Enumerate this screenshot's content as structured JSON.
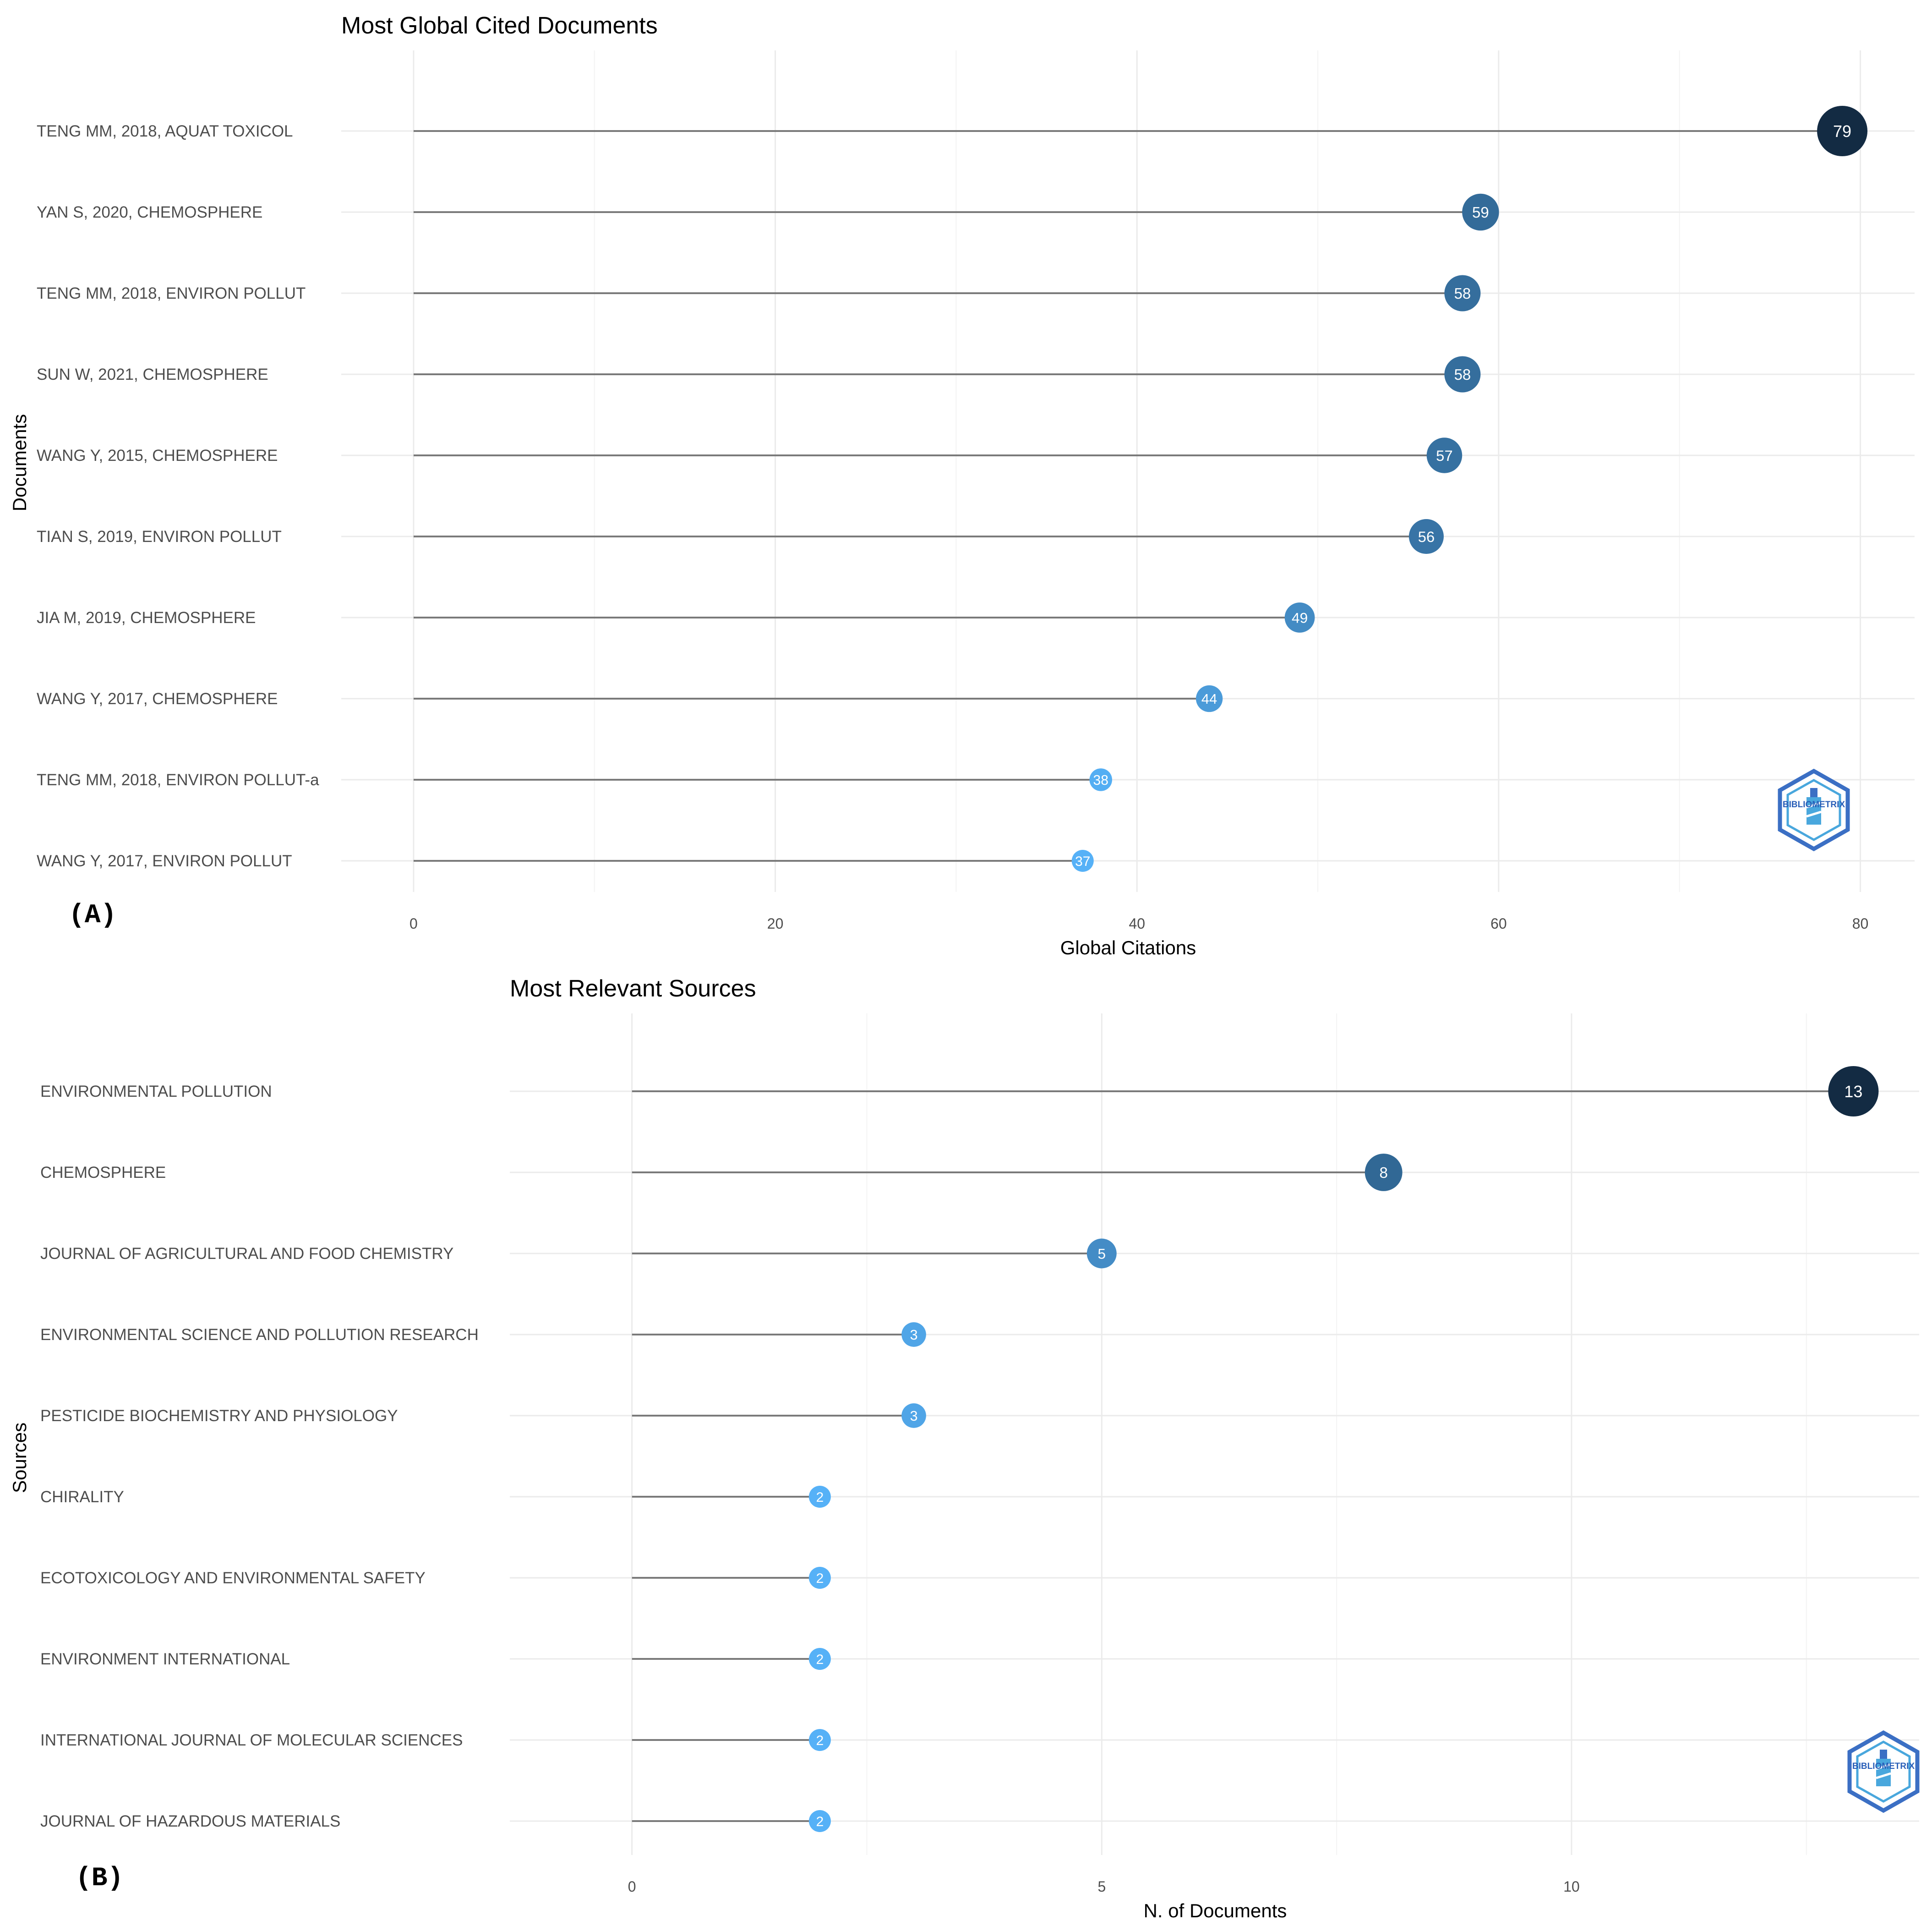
{
  "chart_data": [
    {
      "type": "lollipop",
      "panel_tag": "(A)",
      "title": "Most Global Cited Documents",
      "xlabel": "Global Citations",
      "ylabel": "Documents",
      "xlim": [
        -4,
        83
      ],
      "xticks": [
        0,
        20,
        40,
        60,
        80
      ],
      "categories": [
        "TENG MM, 2018, AQUAT TOXICOL",
        "YAN S, 2020, CHEMOSPHERE",
        "TENG MM, 2018, ENVIRON POLLUT",
        "SUN W, 2021, CHEMOSPHERE",
        "WANG Y, 2015, CHEMOSPHERE",
        "TIAN S, 2019, ENVIRON POLLUT",
        "JIA M, 2019, CHEMOSPHERE",
        "WANG Y, 2017, CHEMOSPHERE",
        "TENG MM, 2018, ENVIRON POLLUT-a",
        "WANG Y, 2017, ENVIRON POLLUT"
      ],
      "values": [
        79,
        59,
        58,
        58,
        57,
        56,
        49,
        44,
        38,
        37
      ],
      "value_labels": [
        "79",
        "59",
        "58",
        "58",
        "57",
        "56",
        "49",
        "44",
        "38",
        "37"
      ],
      "grid": true,
      "color_scale": [
        "#56B1F7",
        "#132B43"
      ],
      "logo_text": "BIBLIOMETRIX"
    },
    {
      "type": "lollipop",
      "panel_tag": "(B)",
      "title": "Most Relevant Sources",
      "xlabel": "N. of Documents",
      "ylabel": "Sources",
      "xlim": [
        -1.3,
        13.7
      ],
      "xticks": [
        0,
        5,
        10
      ],
      "categories": [
        "ENVIRONMENTAL POLLUTION",
        "CHEMOSPHERE",
        "JOURNAL OF AGRICULTURAL AND FOOD CHEMISTRY",
        "ENVIRONMENTAL SCIENCE AND POLLUTION RESEARCH",
        "PESTICIDE BIOCHEMISTRY AND PHYSIOLOGY",
        "CHIRALITY",
        "ECOTOXICOLOGY AND ENVIRONMENTAL SAFETY",
        "ENVIRONMENT INTERNATIONAL",
        "INTERNATIONAL JOURNAL OF MOLECULAR SCIENCES",
        "JOURNAL OF HAZARDOUS MATERIALS"
      ],
      "values": [
        13,
        8,
        5,
        3,
        3,
        2,
        2,
        2,
        2,
        2
      ],
      "value_labels": [
        "13",
        "8",
        "5",
        "3",
        "3",
        "2",
        "2",
        "2",
        "2",
        "2"
      ],
      "grid": true,
      "color_scale": [
        "#56B1F7",
        "#132B43"
      ],
      "logo_text": "BIBLIOMETRIX"
    }
  ]
}
